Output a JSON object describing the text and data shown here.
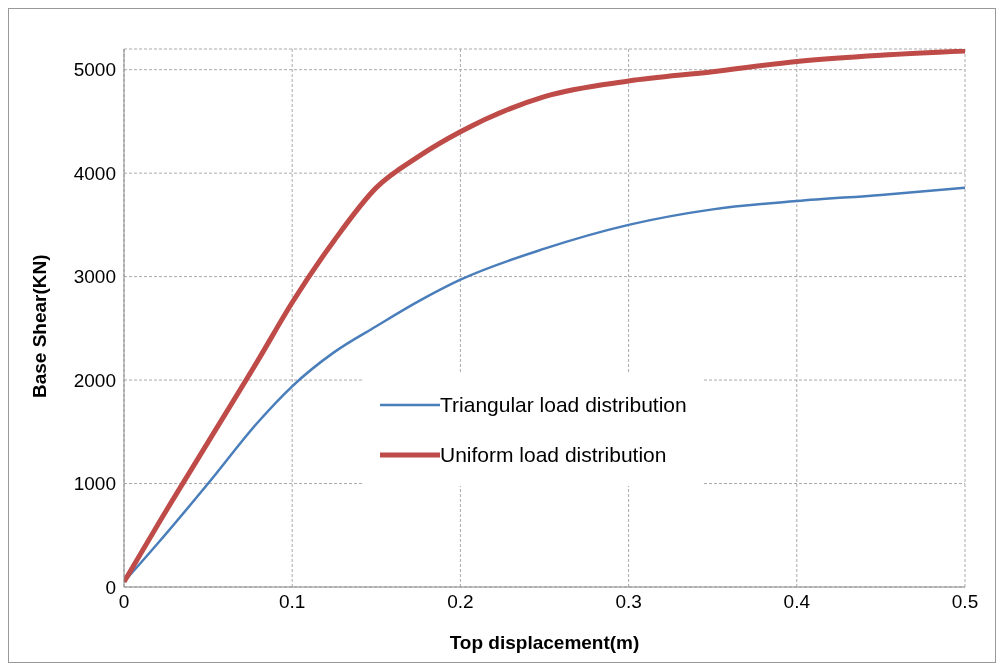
{
  "chart_data": {
    "type": "line",
    "xlabel": "Top displacement(m)",
    "ylabel": "Base Shear(KN)",
    "x": [
      0,
      0.02,
      0.05,
      0.08,
      0.1,
      0.125,
      0.15,
      0.175,
      0.2,
      0.25,
      0.3,
      0.35,
      0.4,
      0.45,
      0.5
    ],
    "series": [
      {
        "name": "Triangular load distribution",
        "color": "#4a7ebb",
        "values": [
          50,
          420,
          1000,
          1600,
          1940,
          2270,
          2520,
          2760,
          2970,
          3270,
          3500,
          3650,
          3730,
          3790,
          3860
        ]
      },
      {
        "name": "Uniform load distribution",
        "color": "#be4b48",
        "values": [
          50,
          600,
          1400,
          2200,
          2750,
          3350,
          3860,
          4160,
          4400,
          4740,
          4890,
          4980,
          5080,
          5140,
          5180
        ]
      }
    ],
    "xlim": [
      0,
      0.5
    ],
    "xticks": [
      0,
      0.1,
      0.2,
      0.3,
      0.4,
      0.5
    ],
    "ylim": [
      0,
      5200
    ],
    "yticks": [
      0,
      1000,
      2000,
      3000,
      4000,
      5000
    ],
    "grid": true,
    "legend": "bottom right",
    "marker": "none",
    "line_style": "solid"
  }
}
